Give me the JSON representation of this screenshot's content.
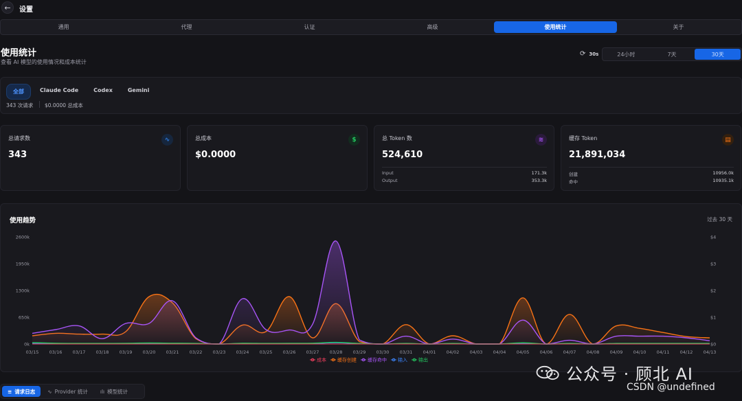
{
  "header": {
    "back_icon": "arrow-left-icon",
    "back_glyph": "←",
    "title": "设置"
  },
  "tabs": [
    {
      "label": "通用",
      "active": false
    },
    {
      "label": "代理",
      "active": false
    },
    {
      "label": "认证",
      "active": false
    },
    {
      "label": "高级",
      "active": false
    },
    {
      "label": "使用统计",
      "active": true
    },
    {
      "label": "关于",
      "active": false
    }
  ],
  "page": {
    "title": "使用统计",
    "subtitle": "查看 AI 模型的使用情况和成本统计"
  },
  "refresh": {
    "icon": "refresh-icon",
    "glyph": "⟳",
    "interval": "30s"
  },
  "time_range": [
    {
      "label": "24小时",
      "active": false
    },
    {
      "label": "7天",
      "active": false
    },
    {
      "label": "30天",
      "active": true
    }
  ],
  "filter": {
    "tabs": [
      {
        "label": "全部",
        "active": true
      },
      {
        "label": "Claude Code",
        "active": false
      },
      {
        "label": "Codex",
        "active": false
      },
      {
        "label": "Gemini",
        "active": false
      }
    ],
    "requests_text": "343 次请求",
    "cost_text": "$0.0000 总成本"
  },
  "cards": [
    {
      "label": "总请求数",
      "value": "343",
      "icon": "activity-icon",
      "glyph": "∿",
      "color": "#2f7de0",
      "bg": "#16263d",
      "rows": []
    },
    {
      "label": "总成本",
      "value": "$0.0000",
      "icon": "dollar-icon",
      "glyph": "$",
      "color": "#22c55e",
      "bg": "#132b1f",
      "rows": []
    },
    {
      "label": "总 Token 数",
      "value": "524,610",
      "icon": "layers-icon",
      "glyph": "≋",
      "color": "#a855f7",
      "bg": "#2a1a3b",
      "rows": [
        {
          "label": "Input",
          "value": "171.3k"
        },
        {
          "label": "Output",
          "value": "353.3k"
        }
      ]
    },
    {
      "label": "缓存 Token",
      "value": "21,891,034",
      "icon": "database-icon",
      "glyph": "▤",
      "color": "#f97316",
      "bg": "#33200f",
      "rows": [
        {
          "label": "创建",
          "value": "10956.0k"
        },
        {
          "label": "命中",
          "value": "10935.1k"
        }
      ]
    }
  ],
  "chart": {
    "title": "使用趋势",
    "range_label": "过去 30 天"
  },
  "chart_data": {
    "type": "area",
    "x": [
      "03/15",
      "03/16",
      "03/17",
      "03/18",
      "03/19",
      "03/20",
      "03/21",
      "03/22",
      "03/23",
      "03/24",
      "03/25",
      "03/26",
      "03/27",
      "03/28",
      "03/29",
      "03/30",
      "03/31",
      "04/01",
      "04/02",
      "04/03",
      "04/04",
      "04/05",
      "04/06",
      "04/07",
      "04/08",
      "04/09",
      "04/10",
      "04/11",
      "04/12",
      "04/13"
    ],
    "y_left": {
      "ticks": [
        "0k",
        "650k",
        "1300k",
        "1950k",
        "2600k"
      ],
      "min": 0,
      "max": 2600000
    },
    "y_right": {
      "ticks": [
        "$0",
        "$1",
        "$2",
        "$3",
        "$4"
      ],
      "min": 0,
      "max": 4
    },
    "grid": false,
    "legend_position": "bottom",
    "series": [
      {
        "name": "成本",
        "color": "#f43f5e",
        "axis": "right",
        "values": [
          0,
          0,
          0,
          0,
          0,
          0,
          0,
          0,
          0,
          0,
          0,
          0,
          0,
          0,
          0,
          0,
          0,
          0,
          0,
          0,
          0,
          0,
          0,
          0,
          0,
          0,
          0,
          0,
          0,
          0
        ]
      },
      {
        "name": "缓存创建",
        "color": "#f97316",
        "axis": "left",
        "values": [
          200000,
          260000,
          240000,
          240000,
          300000,
          1150000,
          1000000,
          130000,
          0,
          460000,
          300000,
          1150000,
          150000,
          980000,
          60000,
          0,
          470000,
          0,
          200000,
          0,
          0,
          1120000,
          0,
          720000,
          0,
          440000,
          380000,
          280000,
          180000,
          150000
        ]
      },
      {
        "name": "缓存命中",
        "color": "#a855f7",
        "axis": "left",
        "values": [
          260000,
          350000,
          440000,
          130000,
          500000,
          500000,
          1050000,
          150000,
          0,
          1100000,
          350000,
          340000,
          480000,
          2500000,
          100000,
          0,
          190000,
          0,
          120000,
          0,
          0,
          580000,
          0,
          90000,
          0,
          190000,
          190000,
          190000,
          150000,
          80000
        ]
      },
      {
        "name": "输入",
        "color": "#3b82f6",
        "axis": "left",
        "values": [
          20000,
          10000,
          8000,
          8000,
          10000,
          15000,
          12000,
          8000,
          0,
          12000,
          8000,
          10000,
          12000,
          30000,
          8000,
          0,
          8000,
          0,
          8000,
          0,
          0,
          15000,
          0,
          8000,
          0,
          8000,
          8000,
          8000,
          8000,
          8000
        ]
      },
      {
        "name": "输出",
        "color": "#22c55e",
        "axis": "left",
        "values": [
          35000,
          20000,
          15000,
          15000,
          18000,
          25000,
          20000,
          15000,
          0,
          20000,
          15000,
          18000,
          20000,
          40000,
          15000,
          0,
          15000,
          0,
          15000,
          0,
          0,
          30000,
          0,
          15000,
          0,
          15000,
          15000,
          15000,
          15000,
          15000
        ]
      }
    ]
  },
  "bottom_tabs": [
    {
      "label": "请求日志",
      "icon": "list-icon",
      "glyph": "≡",
      "active": true
    },
    {
      "label": "Provider 统计",
      "icon": "trend-icon",
      "glyph": "∿",
      "active": false
    },
    {
      "label": "模型统计",
      "icon": "bar-chart-icon",
      "glyph": "ılı",
      "active": false
    }
  ],
  "watermark": {
    "line1": "公众号 · 顾北 AI",
    "line2": "CSDN @undefined"
  }
}
